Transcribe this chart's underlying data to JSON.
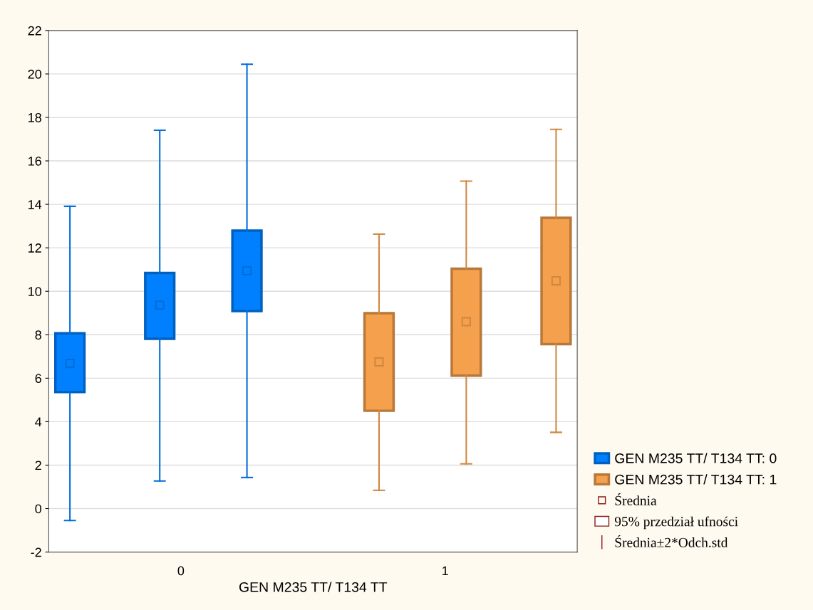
{
  "chart_data": {
    "type": "box",
    "xlabel": "GEN M235 TT/ T134 TT",
    "xlim": [
      -0.5,
      1.5
    ],
    "xticks": [
      0,
      1
    ],
    "ylim": [
      -2,
      22
    ],
    "yticks": [
      -2,
      0,
      2,
      4,
      6,
      8,
      10,
      12,
      14,
      16,
      18,
      20,
      22
    ],
    "grid": "y",
    "legend": "right",
    "marker": "square",
    "annotations": [
      "Średnia",
      "95% przedział ufności",
      "Średnia±2*Odch.std"
    ],
    "series": [
      {
        "name": "GEN M235 TT/ T134 TT: 0",
        "color": "#0080ff",
        "x": [
          -0.42,
          -0.08,
          0.25
        ],
        "boxes": [
          {
            "low": -0.55,
            "q1": 5.36,
            "q3": 8.07,
            "high": 13.91,
            "mean": 6.68
          },
          {
            "low": 1.27,
            "q1": 7.81,
            "q3": 10.84,
            "high": 17.41,
            "mean": 9.36
          },
          {
            "low": 1.43,
            "q1": 9.09,
            "q3": 12.79,
            "high": 20.45,
            "mean": 10.94
          }
        ]
      },
      {
        "name": "GEN M235 TT/ T134 TT: 1",
        "color": "#f5a04c",
        "x": [
          0.75,
          1.08,
          1.42
        ],
        "boxes": [
          {
            "low": 0.84,
            "q1": 4.5,
            "q3": 8.99,
            "high": 12.63,
            "mean": 6.75
          },
          {
            "low": 2.06,
            "q1": 6.12,
            "q3": 11.04,
            "high": 15.07,
            "mean": 8.6
          },
          {
            "low": 3.51,
            "q1": 7.57,
            "q3": 13.38,
            "high": 17.45,
            "mean": 10.48
          }
        ]
      }
    ]
  }
}
